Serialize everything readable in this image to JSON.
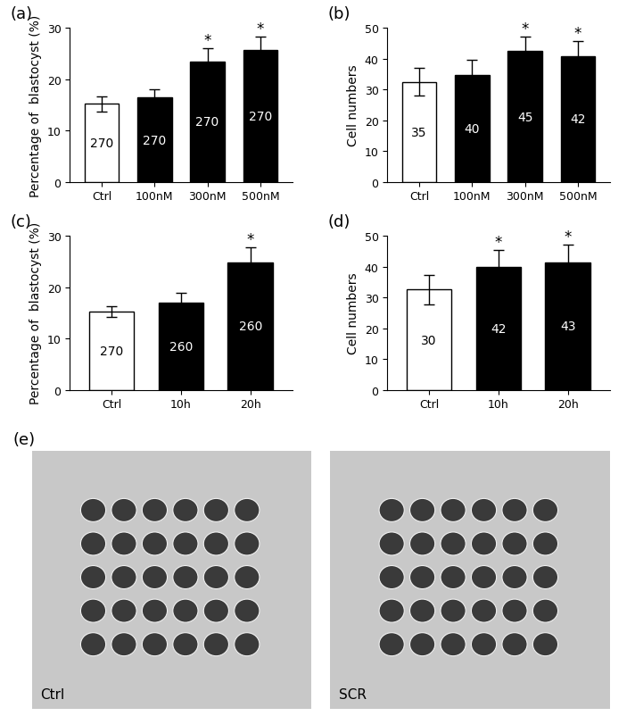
{
  "chart_data": [
    {
      "type": "bar",
      "title": "(a)",
      "y_label": "Percentage of  blastocyst (%)",
      "categories": [
        "Ctrl",
        "100nM",
        "300nM",
        "500nM"
      ],
      "values": [
        15.2,
        16.4,
        23.4,
        25.7
      ],
      "errors": [
        1.5,
        1.6,
        2.6,
        2.5
      ],
      "n": [
        270,
        270,
        270,
        270
      ],
      "significance": [
        null,
        null,
        "*",
        "*"
      ],
      "colors": [
        "#ffffff",
        "#000000",
        "#000000",
        "#000000"
      ],
      "ylim": [
        0,
        30
      ],
      "yticks": [
        0,
        10,
        20,
        30
      ]
    },
    {
      "type": "bar",
      "title": "(b)",
      "y_label": "Cell numbers",
      "categories": [
        "Ctrl",
        "100nM",
        "300nM",
        "500nM"
      ],
      "values": [
        32.5,
        34.6,
        42.4,
        40.7
      ],
      "errors": [
        4.5,
        5.0,
        4.8,
        5.0
      ],
      "n": [
        35,
        40,
        45,
        42
      ],
      "significance": [
        null,
        null,
        "*",
        "*"
      ],
      "colors": [
        "#ffffff",
        "#000000",
        "#000000",
        "#000000"
      ],
      "ylim": [
        0,
        50
      ],
      "yticks": [
        0,
        10,
        20,
        30,
        40,
        50
      ]
    },
    {
      "type": "bar",
      "title": "(c)",
      "y_label": "Percentage of  blastocyst (%)",
      "categories": [
        "Ctrl",
        "10h",
        "20h"
      ],
      "values": [
        15.2,
        17.0,
        24.8
      ],
      "errors": [
        1.0,
        1.8,
        3.0
      ],
      "n": [
        270,
        260,
        260
      ],
      "significance": [
        null,
        null,
        "*"
      ],
      "colors": [
        "#ffffff",
        "#000000",
        "#000000"
      ],
      "ylim": [
        0,
        30
      ],
      "yticks": [
        0,
        10,
        20,
        30
      ]
    },
    {
      "type": "bar",
      "title": "(d)",
      "y_label": "Cell numbers",
      "categories": [
        "Ctrl",
        "10h",
        "20h"
      ],
      "values": [
        32.5,
        40.0,
        41.4
      ],
      "errors": [
        4.8,
        5.3,
        5.6
      ],
      "n": [
        30,
        42,
        43
      ],
      "significance": [
        null,
        "*",
        "*"
      ],
      "colors": [
        "#ffffff",
        "#000000",
        "#000000"
      ],
      "ylim": [
        0,
        50
      ],
      "yticks": [
        0,
        10,
        20,
        30,
        40,
        50
      ]
    }
  ],
  "images_panel": {
    "title": "(e)",
    "images": [
      "Ctrl",
      "SCR"
    ]
  }
}
